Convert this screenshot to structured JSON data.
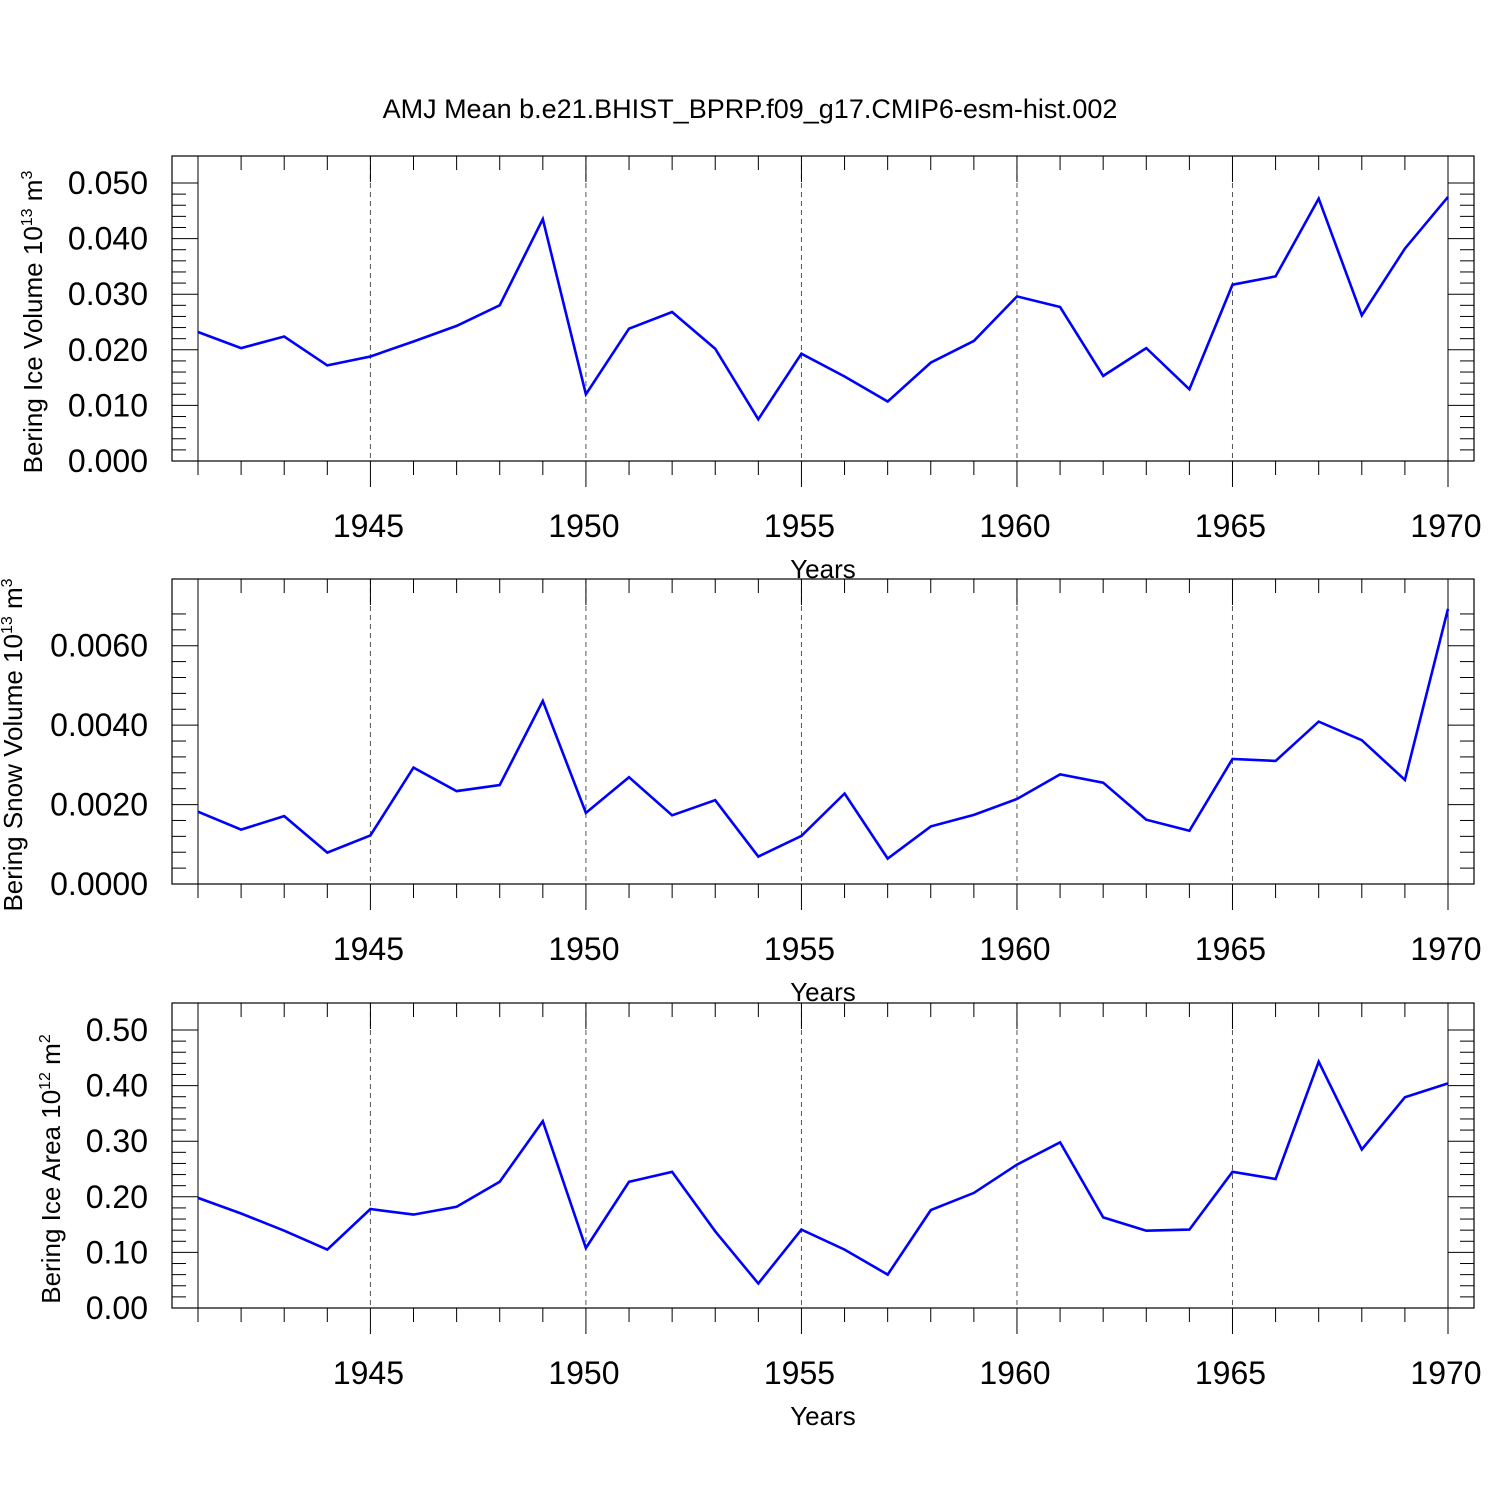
{
  "figure": {
    "title": "AMJ Mean b.e21.BHIST_BPRP.f09_g17.CMIP6-esm-hist.002"
  },
  "colors": {
    "line": "#0000ff",
    "axis": "#000000",
    "grid": "#555555"
  },
  "chart_data": [
    {
      "type": "line",
      "ylabel": "Bering Ice Volume 10",
      "ylabel_exp": "13",
      "ylabel_unit": " m",
      "ylabel_unit_exp": "3",
      "xlabel": "Years",
      "xlim": [
        1941,
        1970
      ],
      "ylim": [
        0,
        0.05
      ],
      "yticks": [
        0.0,
        0.01,
        0.02,
        0.03,
        0.04,
        0.05
      ],
      "yticklabels": [
        "0.000",
        "0.010",
        "0.020",
        "0.030",
        "0.040",
        "0.050"
      ],
      "xticks": [
        1945,
        1950,
        1955,
        1960,
        1965,
        1970
      ],
      "xticklabels": [
        "1945",
        "1950",
        "1955",
        "1960",
        "1965",
        "1970"
      ],
      "grid": "x-dashed",
      "x": [
        1941,
        1942,
        1943,
        1944,
        1945,
        1946,
        1947,
        1948,
        1949,
        1950,
        1951,
        1952,
        1953,
        1954,
        1955,
        1956,
        1957,
        1958,
        1959,
        1960,
        1961,
        1962,
        1963,
        1964,
        1965,
        1966,
        1967,
        1968,
        1969,
        1970
      ],
      "y": [
        0.0232,
        0.0203,
        0.0224,
        0.0172,
        0.0188,
        0.0215,
        0.0243,
        0.028,
        0.0435,
        0.012,
        0.0238,
        0.0268,
        0.0202,
        0.0075,
        0.0193,
        0.0152,
        0.0107,
        0.0177,
        0.0216,
        0.0296,
        0.0277,
        0.0153,
        0.0203,
        0.0129,
        0.0317,
        0.0332,
        0.0472,
        0.0262,
        0.0382,
        0.0475
      ]
    },
    {
      "type": "line",
      "ylabel": "Bering Snow Volume 10",
      "ylabel_exp": "13",
      "ylabel_unit": " m",
      "ylabel_unit_exp": "3",
      "xlabel": "Years",
      "xlim": [
        1941,
        1970
      ],
      "ylim": [
        0,
        0.007
      ],
      "yticks": [
        0.0,
        0.002,
        0.004,
        0.006
      ],
      "yticklabels": [
        "0.0000",
        "0.0020",
        "0.0040",
        "0.0060"
      ],
      "xticks": [
        1945,
        1950,
        1955,
        1960,
        1965,
        1970
      ],
      "xticklabels": [
        "1945",
        "1950",
        "1955",
        "1960",
        "1965",
        "1970"
      ],
      "grid": "x-dashed",
      "x": [
        1941,
        1942,
        1943,
        1944,
        1945,
        1946,
        1947,
        1948,
        1949,
        1950,
        1951,
        1952,
        1953,
        1954,
        1955,
        1956,
        1957,
        1958,
        1959,
        1960,
        1961,
        1962,
        1963,
        1964,
        1965,
        1966,
        1967,
        1968,
        1969,
        1970
      ],
      "y": [
        0.00182,
        0.00137,
        0.00171,
        0.00079,
        0.00122,
        0.00293,
        0.00234,
        0.00249,
        0.00461,
        0.00179,
        0.00269,
        0.00173,
        0.00211,
        0.00069,
        0.00121,
        0.00228,
        0.00064,
        0.00145,
        0.00174,
        0.00214,
        0.00276,
        0.00255,
        0.00162,
        0.00134,
        0.00315,
        0.0031,
        0.00409,
        0.00362,
        0.00262,
        0.00693
      ]
    },
    {
      "type": "line",
      "ylabel": "Bering Ice Area 10",
      "ylabel_exp": "12",
      "ylabel_unit": " m",
      "ylabel_unit_exp": "2",
      "xlabel": "Years",
      "xlim": [
        1941,
        1970
      ],
      "ylim": [
        0,
        0.5
      ],
      "yticks": [
        0.0,
        0.1,
        0.2,
        0.3,
        0.4,
        0.5
      ],
      "yticklabels": [
        "0.00",
        "0.10",
        "0.20",
        "0.30",
        "0.40",
        "0.50"
      ],
      "xticks": [
        1945,
        1950,
        1955,
        1960,
        1965,
        1970
      ],
      "xticklabels": [
        "1945",
        "1950",
        "1955",
        "1960",
        "1965",
        "1970"
      ],
      "grid": "x-dashed",
      "x": [
        1941,
        1942,
        1943,
        1944,
        1945,
        1946,
        1947,
        1948,
        1949,
        1950,
        1951,
        1952,
        1953,
        1954,
        1955,
        1956,
        1957,
        1958,
        1959,
        1960,
        1961,
        1962,
        1963,
        1964,
        1965,
        1966,
        1967,
        1968,
        1969,
        1970
      ],
      "y": [
        0.198,
        0.17,
        0.139,
        0.105,
        0.178,
        0.168,
        0.182,
        0.227,
        0.336,
        0.108,
        0.227,
        0.245,
        0.138,
        0.044,
        0.141,
        0.105,
        0.06,
        0.176,
        0.207,
        0.258,
        0.298,
        0.163,
        0.139,
        0.141,
        0.245,
        0.232,
        0.443,
        0.285,
        0.379,
        0.404
      ]
    }
  ]
}
